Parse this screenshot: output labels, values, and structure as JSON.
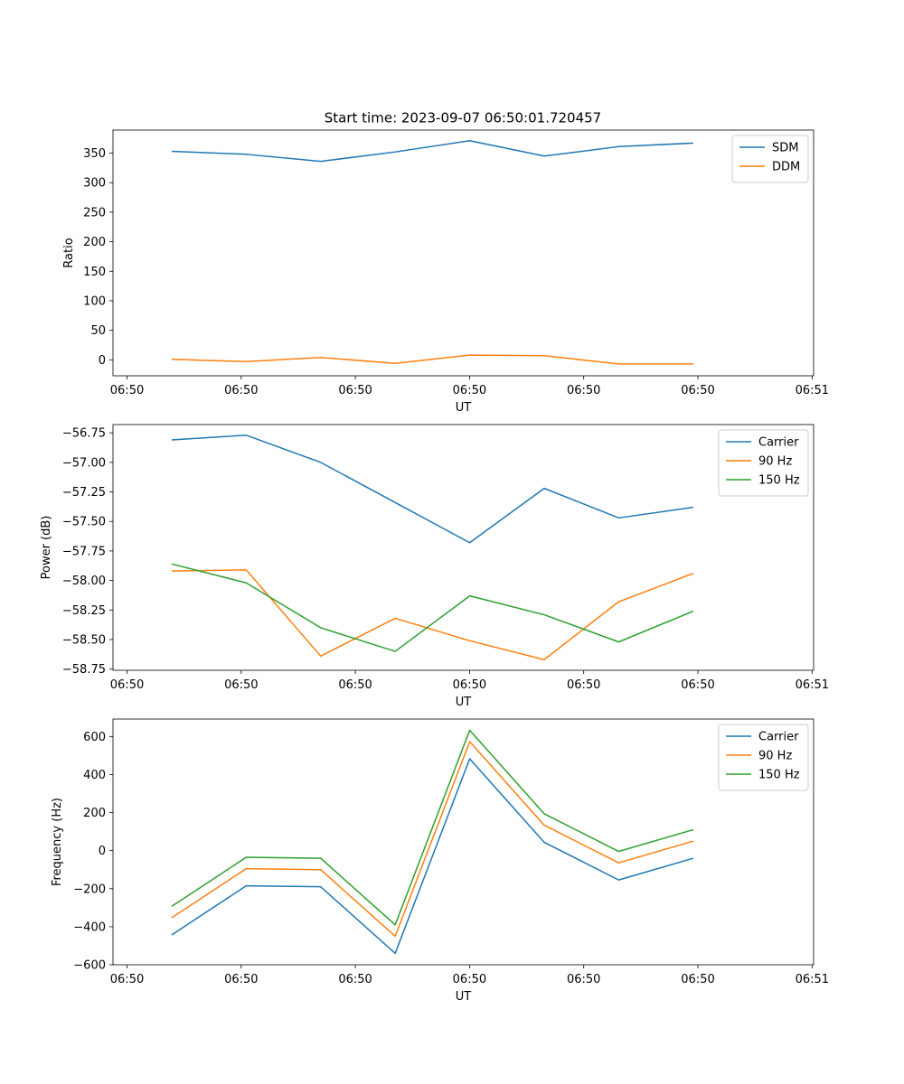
{
  "figure": {
    "title": "Start time: 2023-09-07 06:50:01.720457"
  },
  "colors": {
    "c0": "#1f77b4",
    "c1": "#ff7f0e",
    "c2": "#2ca02c"
  },
  "chart_data": [
    {
      "type": "line",
      "title": "Start time: 2023-09-07 06:50:01.720457",
      "xlabel": "UT",
      "ylabel": "Ratio",
      "x_tick_labels": [
        "06:50",
        "06:50",
        "06:50",
        "06:50",
        "06:50",
        "06:50",
        "06:51"
      ],
      "xlim": [
        0,
        9.31
      ],
      "x": [
        0.78,
        1.77,
        2.76,
        3.75,
        4.74,
        5.73,
        6.72,
        7.71
      ],
      "ylim": [
        -27,
        389
      ],
      "yticks": [
        0,
        50,
        100,
        150,
        200,
        250,
        300,
        350
      ],
      "y_tick_labels": [
        "0",
        "50",
        "100",
        "150",
        "200",
        "250",
        "300",
        "350"
      ],
      "legend": "top-right",
      "series": [
        {
          "name": "SDM",
          "color": "#1f77b4",
          "values": [
            353,
            348,
            336,
            352,
            371,
            345,
            361,
            367
          ]
        },
        {
          "name": "DDM",
          "color": "#ff7f0e",
          "values": [
            1,
            -3,
            4,
            -6,
            8,
            7,
            -7,
            -7
          ]
        }
      ]
    },
    {
      "type": "line",
      "title": "",
      "xlabel": "UT",
      "ylabel": "Power (dB)",
      "x_tick_labels": [
        "06:50",
        "06:50",
        "06:50",
        "06:50",
        "06:50",
        "06:50",
        "06:51"
      ],
      "xlim": [
        0,
        9.31
      ],
      "x": [
        0.78,
        1.77,
        2.76,
        3.75,
        4.74,
        5.73,
        6.72,
        7.71
      ],
      "ylim": [
        -58.76,
        -56.68
      ],
      "yticks": [
        -58.75,
        -58.5,
        -58.25,
        -58.0,
        -57.75,
        -57.5,
        -57.25,
        -57.0,
        -56.75
      ],
      "y_tick_labels": [
        "−58.75",
        "−58.50",
        "−58.25",
        "−58.00",
        "−57.75",
        "−57.50",
        "−57.25",
        "−57.00",
        "−56.75"
      ],
      "legend": "top-right",
      "series": [
        {
          "name": "Carrier",
          "color": "#1f77b4",
          "values": [
            -56.81,
            -56.77,
            -57.0,
            -57.34,
            -57.68,
            -57.22,
            -57.47,
            -57.38
          ]
        },
        {
          "name": "90 Hz",
          "color": "#ff7f0e",
          "values": [
            -57.92,
            -57.91,
            -58.64,
            -58.32,
            -58.51,
            -58.67,
            -58.18,
            -57.94
          ]
        },
        {
          "name": "150 Hz",
          "color": "#2ca02c",
          "values": [
            -57.86,
            -58.02,
            -58.4,
            -58.6,
            -58.13,
            -58.29,
            -58.52,
            -58.26
          ]
        }
      ]
    },
    {
      "type": "line",
      "title": "",
      "xlabel": "UT",
      "ylabel": "Frequency (Hz)",
      "x_tick_labels": [
        "06:50",
        "06:50",
        "06:50",
        "06:50",
        "06:50",
        "06:50",
        "06:51"
      ],
      "xlim": [
        0,
        9.31
      ],
      "x": [
        0.78,
        1.77,
        2.76,
        3.75,
        4.74,
        5.73,
        6.72,
        7.71
      ],
      "ylim": [
        -600,
        692
      ],
      "yticks": [
        -600,
        -400,
        -200,
        0,
        200,
        400,
        600
      ],
      "y_tick_labels": [
        "−600",
        "−400",
        "−200",
        "0",
        "200",
        "400",
        "600"
      ],
      "legend": "top-right",
      "series": [
        {
          "name": "Carrier",
          "color": "#1f77b4",
          "values": [
            -443,
            -185,
            -190,
            -540,
            483,
            44,
            -154,
            -40
          ]
        },
        {
          "name": "90 Hz",
          "color": "#ff7f0e",
          "values": [
            -353,
            -95,
            -100,
            -450,
            573,
            134,
            -64,
            50
          ]
        },
        {
          "name": "150 Hz",
          "color": "#2ca02c",
          "values": [
            -293,
            -35,
            -40,
            -390,
            633,
            194,
            -4,
            110
          ]
        }
      ]
    }
  ]
}
